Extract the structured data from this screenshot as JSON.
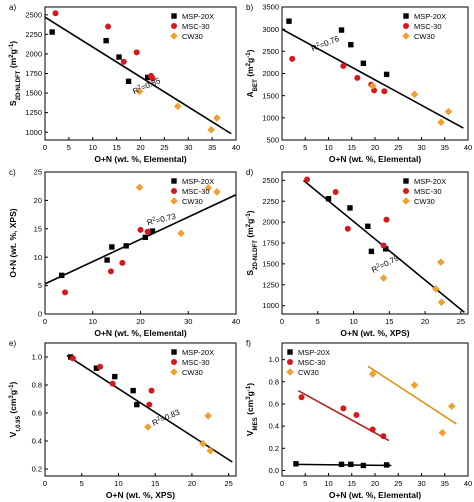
{
  "chart_data": [
    {
      "panel": "a)",
      "type": "scatter",
      "xlabel": "O+N (wt. %, Elemental)",
      "ylabel": "S2D-NLDFT (m²g⁻¹)",
      "xlim": [
        0,
        40
      ],
      "ylim": [
        900,
        2600
      ],
      "xticks": [
        0,
        5,
        10,
        15,
        20,
        25,
        30,
        35,
        40
      ],
      "yticks": [
        1000,
        1250,
        1500,
        1750,
        2000,
        2250,
        2500
      ],
      "legend": "top-right",
      "annotation": "R²=0.85",
      "series": [
        {
          "name": "MSP-20X",
          "color": "#000000",
          "marker": "square",
          "x": [
            1.5,
            12.8,
            15.5,
            17.5,
            21.5
          ],
          "y": [
            2280,
            2170,
            1960,
            1650,
            1700
          ]
        },
        {
          "name": "MSC-30",
          "color": "#d7191c",
          "marker": "circle",
          "x": [
            2.2,
            13.2,
            16.5,
            19.2,
            22.2,
            22.5
          ],
          "y": [
            2520,
            2350,
            1900,
            2020,
            1720,
            1690
          ]
        },
        {
          "name": "CW30",
          "color": "#f0a030",
          "marker": "diamond",
          "x": [
            19.8,
            27.8,
            34.8,
            36.0
          ],
          "y": [
            1520,
            1330,
            1030,
            1180
          ]
        }
      ],
      "fit": {
        "x": [
          0,
          39
        ],
        "y": [
          2470,
          980
        ]
      }
    },
    {
      "panel": "b)",
      "type": "scatter",
      "xlabel": "O+N (wt. %, Elemental)",
      "ylabel": "ABET (m²g⁻¹)",
      "xlim": [
        0,
        40
      ],
      "ylim": [
        500,
        3500
      ],
      "xticks": [
        0,
        5,
        10,
        15,
        20,
        25,
        30,
        35,
        40
      ],
      "yticks": [
        500,
        1000,
        1500,
        2000,
        2500,
        3000,
        3500
      ],
      "legend": "top-right",
      "annotation": "R²=0.76",
      "series": [
        {
          "name": "MSP-20X",
          "color": "#000000",
          "marker": "square",
          "x": [
            1.5,
            12.8,
            14.8,
            17.5,
            22.5
          ],
          "y": [
            3180,
            2980,
            2650,
            2230,
            1980
          ]
        },
        {
          "name": "MSC-30",
          "color": "#d7191c",
          "marker": "circle",
          "x": [
            2.2,
            13.2,
            16.2,
            19.2,
            19.8,
            22.0
          ],
          "y": [
            2330,
            2170,
            1900,
            1750,
            1620,
            1600
          ]
        },
        {
          "name": "CW30",
          "color": "#f0a030",
          "marker": "diamond",
          "x": [
            19.5,
            28.5,
            34.2,
            35.8
          ],
          "y": [
            1720,
            1530,
            900,
            1140
          ]
        }
      ],
      "fit": {
        "x": [
          0,
          39
        ],
        "y": [
          3000,
          770
        ]
      }
    },
    {
      "panel": "c)",
      "type": "scatter",
      "xlabel": "O+N (wt. %, Elemental)",
      "ylabel": "O+N (wt. %, XPS)",
      "xlim": [
        0,
        40
      ],
      "ylim": [
        0,
        25
      ],
      "xticks": [
        0,
        10,
        20,
        30,
        40
      ],
      "yticks": [
        0,
        5,
        10,
        15,
        20,
        25
      ],
      "legend": "top-right",
      "annotation": "R²=0.73",
      "series": [
        {
          "name": "MSP-20X",
          "color": "#000000",
          "marker": "square",
          "x": [
            3.5,
            13.0,
            14.0,
            17.0,
            21.0,
            22.5
          ],
          "y": [
            6.8,
            9.5,
            11.8,
            12.0,
            13.5,
            14.6
          ]
        },
        {
          "name": "MSC-30",
          "color": "#d7191c",
          "marker": "circle",
          "x": [
            4.2,
            13.8,
            16.2,
            20.0,
            21.5
          ],
          "y": [
            3.8,
            7.5,
            9.0,
            14.8,
            14.5
          ]
        },
        {
          "name": "CW30",
          "color": "#f0a030",
          "marker": "diamond",
          "x": [
            19.8,
            28.5,
            34.2,
            36.0
          ],
          "y": [
            22.3,
            14.2,
            22.2,
            21.5
          ]
        }
      ],
      "fit": {
        "x": [
          0,
          40
        ],
        "y": [
          5.3,
          21.0
        ]
      }
    },
    {
      "panel": "d)",
      "type": "scatter",
      "xlabel": "O+N (wt. %, XPS)",
      "ylabel": "S2D-NLDFT (m²g⁻¹)",
      "xlim": [
        0,
        26
      ],
      "ylim": [
        900,
        2600
      ],
      "xticks": [
        0,
        5,
        10,
        15,
        20,
        25
      ],
      "yticks": [
        1000,
        1250,
        1500,
        1750,
        2000,
        2250,
        2500
      ],
      "legend": "top-right",
      "annotation": "R²=0.79",
      "series": [
        {
          "name": "MSP-20X",
          "color": "#000000",
          "marker": "square",
          "x": [
            6.5,
            9.5,
            12.0,
            12.5,
            14.5
          ],
          "y": [
            2280,
            2170,
            1950,
            1650,
            1680
          ]
        },
        {
          "name": "MSC-30",
          "color": "#d7191c",
          "marker": "circle",
          "x": [
            3.5,
            7.5,
            9.2,
            14.2,
            14.6
          ],
          "y": [
            2510,
            2360,
            1920,
            1720,
            2030
          ]
        },
        {
          "name": "CW30",
          "color": "#f0a030",
          "marker": "diamond",
          "x": [
            14.2,
            21.5,
            22.2,
            22.3
          ],
          "y": [
            1330,
            1200,
            1520,
            1040
          ]
        }
      ],
      "fit": {
        "x": [
          3,
          25.5
        ],
        "y": [
          2500,
          920
        ]
      }
    },
    {
      "panel": "e)",
      "type": "scatter",
      "xlabel": "O+N (wt. %, XPS)",
      "ylabel": "Vt,0.95 (cm³g⁻¹)",
      "xlim": [
        0,
        26
      ],
      "ylim": [
        0.15,
        1.1
      ],
      "xticks": [
        0,
        5,
        10,
        15,
        20,
        25
      ],
      "yticks": [
        0.2,
        0.4,
        0.6,
        0.8,
        1.0
      ],
      "legend": "top-right",
      "annotation": "R²=0.83",
      "series": [
        {
          "name": "MSP-20X",
          "color": "#000000",
          "marker": "square",
          "x": [
            3.5,
            7.0,
            9.5,
            12.0,
            12.5
          ],
          "y": [
            1.0,
            0.92,
            0.86,
            0.76,
            0.66
          ]
        },
        {
          "name": "MSC-30",
          "color": "#d7191c",
          "marker": "circle",
          "x": [
            3.8,
            7.5,
            9.2,
            14.2,
            14.5
          ],
          "y": [
            0.99,
            0.93,
            0.81,
            0.66,
            0.76
          ]
        },
        {
          "name": "CW30",
          "color": "#f0a030",
          "marker": "diamond",
          "x": [
            14.0,
            21.5,
            22.2,
            22.5
          ],
          "y": [
            0.5,
            0.38,
            0.58,
            0.33
          ]
        }
      ],
      "fit": {
        "x": [
          3,
          25.5
        ],
        "y": [
          1.01,
          0.25
        ]
      }
    },
    {
      "panel": "f)",
      "type": "scatter",
      "xlabel": "O+N (wt. %, Elemental)",
      "ylabel": "VMES (cm³g⁻¹)",
      "xlim": [
        0,
        40
      ],
      "ylim": [
        -0.05,
        1.15
      ],
      "xticks": [
        0,
        5,
        10,
        15,
        20,
        25,
        30,
        35,
        40
      ],
      "yticks": [
        0.0,
        0.2,
        0.4,
        0.6,
        0.8,
        1.0
      ],
      "legend": "top-left",
      "series": [
        {
          "name": "MSP-20X",
          "color": "#000000",
          "marker": "square",
          "x": [
            3.0,
            12.8,
            14.8,
            17.5,
            22.5
          ],
          "y": [
            0.06,
            0.055,
            0.055,
            0.045,
            0.05
          ]
        },
        {
          "name": "MSC-30",
          "color": "#d7191c",
          "marker": "circle",
          "x": [
            4.2,
            13.2,
            16.0,
            19.5,
            21.8
          ],
          "y": [
            0.66,
            0.56,
            0.5,
            0.37,
            0.31
          ]
        },
        {
          "name": "CW30",
          "color": "#f0a030",
          "marker": "diamond",
          "x": [
            19.5,
            28.5,
            34.5,
            36.5
          ],
          "y": [
            0.87,
            0.77,
            0.34,
            0.58
          ]
        }
      ],
      "fits": [
        {
          "color": "#000000",
          "x": [
            3.0,
            23.5
          ],
          "y": [
            0.055,
            0.045
          ]
        },
        {
          "color": "#b22222",
          "x": [
            3.5,
            23.0
          ],
          "y": [
            0.72,
            0.27
          ]
        },
        {
          "color": "#e0921a",
          "x": [
            18.5,
            37.5
          ],
          "y": [
            0.94,
            0.42
          ]
        }
      ]
    }
  ]
}
